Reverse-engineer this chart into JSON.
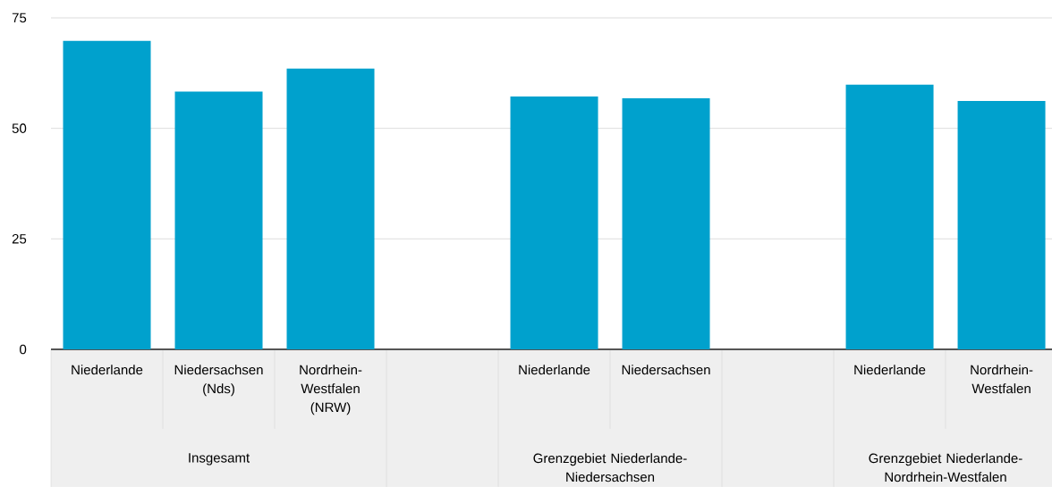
{
  "chart_data": {
    "type": "bar",
    "categories": [
      "Niederlande",
      "Niedersachsen (Nds)",
      "Nordrhein-Westfalen (NRW)",
      null,
      "Niederlande",
      "Niedersachsen",
      null,
      "Niederlande",
      "Nordrhein-Westfalen"
    ],
    "values": [
      69.8,
      58.3,
      63.5,
      null,
      57.2,
      56.8,
      null,
      59.9,
      56.2
    ],
    "color": "#00a1cd",
    "ylim": [
      0,
      75
    ],
    "yticks": [
      0,
      25,
      50,
      75
    ],
    "grid": "y",
    "annotations": [
      "Insgesamt",
      "Grenzgebiet Niederlande-Niedersachsen",
      "Grenzgebiet Niederlande-Nordrhein-Westfalen"
    ]
  }
}
